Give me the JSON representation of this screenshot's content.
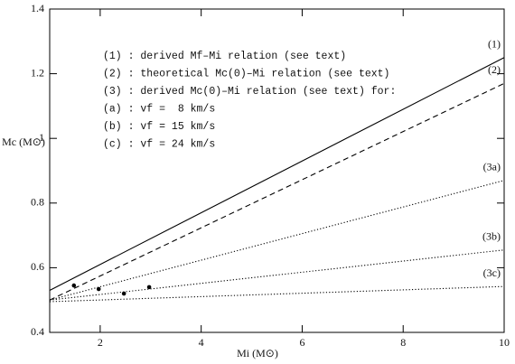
{
  "chart_data": {
    "type": "line",
    "x_label": "Mi (M⊙)",
    "y_label": "Mc (M⊙)",
    "xlim": [
      1,
      10
    ],
    "ylim": [
      0.4,
      1.4
    ],
    "xticks": [
      2,
      4,
      6,
      8,
      10
    ],
    "yticks": [
      0.4,
      0.6,
      0.8,
      1,
      1.2,
      1.4
    ],
    "series": [
      {
        "name": "(1)",
        "style": "solid",
        "color": "#000000",
        "x": [
          1,
          10
        ],
        "values": [
          0.53,
          1.25
        ]
      },
      {
        "name": "(2)",
        "style": "dashed",
        "color": "#000000",
        "x": [
          1,
          10
        ],
        "values": [
          0.5,
          1.17
        ]
      },
      {
        "name": "(3a)",
        "style": "dotted",
        "color": "#000000",
        "x": [
          1,
          10
        ],
        "values": [
          0.5,
          0.87
        ]
      },
      {
        "name": "(3b)",
        "style": "dotted",
        "color": "#000000",
        "x": [
          1,
          10
        ],
        "values": [
          0.5,
          0.655
        ]
      },
      {
        "name": "(3c)",
        "style": "dotted",
        "color": "#000000",
        "x": [
          1,
          10
        ],
        "values": [
          0.495,
          0.542
        ]
      }
    ],
    "points": {
      "x": [
        1.48,
        1.97,
        2.47,
        2.97
      ],
      "values": [
        0.545,
        0.534,
        0.52,
        0.54
      ],
      "color": "#000000"
    },
    "annotations": [
      "(1) : derived Mf–Mi relation (see text)",
      "(2) : theoretical Mc(0)–Mi relation (see text)",
      "(3) : derived Mc(0)–Mi relation (see text) for:",
      "(a) : vf =  8 km/s",
      "(b) : vf = 15 km/s",
      "(c) : vf = 24 km/s"
    ]
  }
}
